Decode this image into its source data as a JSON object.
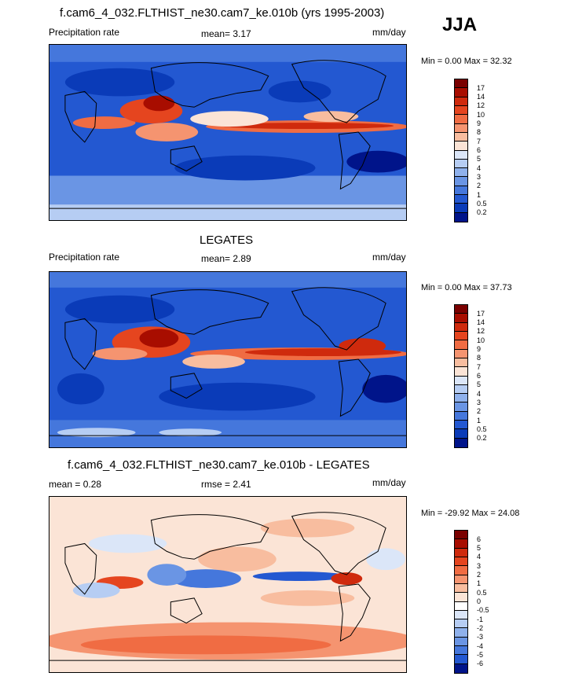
{
  "season": "JJA",
  "panels": [
    {
      "title": "f.cam6_4_032.FLTHIST_ne30.cam7_ke.010b (yrs 1995-2003)",
      "left_label": "Precipitation rate",
      "center_label": "mean=   3.17",
      "units": "mm/day",
      "minmax": "Min =    0.00 Max =  32.32",
      "colorbar": {
        "labels": [
          "17",
          "14",
          "12",
          "10",
          "9",
          "8",
          "7",
          "6",
          "5",
          "4",
          "3",
          "2",
          "1",
          "0.5",
          "0.2"
        ],
        "colors": [
          "#7a0000",
          "#a80d00",
          "#cf2a0d",
          "#e5451f",
          "#f06c43",
          "#f59470",
          "#f8bd9f",
          "#fbe4d6",
          "#dbe6f8",
          "#b6cdf3",
          "#8fb1ec",
          "#6a95e4",
          "#4577dc",
          "#2358d1",
          "#0a3bb8",
          "#00148a"
        ]
      }
    },
    {
      "title": "LEGATES",
      "left_label": "Precipitation rate",
      "center_label": "mean=   2.89",
      "units": "mm/day",
      "minmax": "Min =    0.00 Max =  37.73",
      "colorbar": {
        "labels": [
          "17",
          "14",
          "12",
          "10",
          "9",
          "8",
          "7",
          "6",
          "5",
          "4",
          "3",
          "2",
          "1",
          "0.5",
          "0.2"
        ],
        "colors": [
          "#7a0000",
          "#a80d00",
          "#cf2a0d",
          "#e5451f",
          "#f06c43",
          "#f59470",
          "#f8bd9f",
          "#fbe4d6",
          "#dbe6f8",
          "#b6cdf3",
          "#8fb1ec",
          "#6a95e4",
          "#4577dc",
          "#2358d1",
          "#0a3bb8",
          "#00148a"
        ]
      }
    },
    {
      "title": "f.cam6_4_032.FLTHIST_ne30.cam7_ke.010b - LEGATES",
      "left_label": "mean =   0.28",
      "center_label": "rmse =   2.41",
      "units": "mm/day",
      "minmax": "Min = -29.92 Max =  24.08",
      "colorbar": {
        "labels": [
          "6",
          "5",
          "4",
          "3",
          "2",
          "1",
          "0.5",
          "0",
          "-0.5",
          "-1",
          "-2",
          "-3",
          "-4",
          "-5",
          "-6"
        ],
        "colors": [
          "#7a0000",
          "#a80d00",
          "#cf2a0d",
          "#e5451f",
          "#f06c43",
          "#f59470",
          "#f8bd9f",
          "#fbe4d6",
          "#ffffff",
          "#dbe6f8",
          "#b6cdf3",
          "#8fb1ec",
          "#6a95e4",
          "#4577dc",
          "#2358d1",
          "#00148a"
        ]
      }
    }
  ]
}
